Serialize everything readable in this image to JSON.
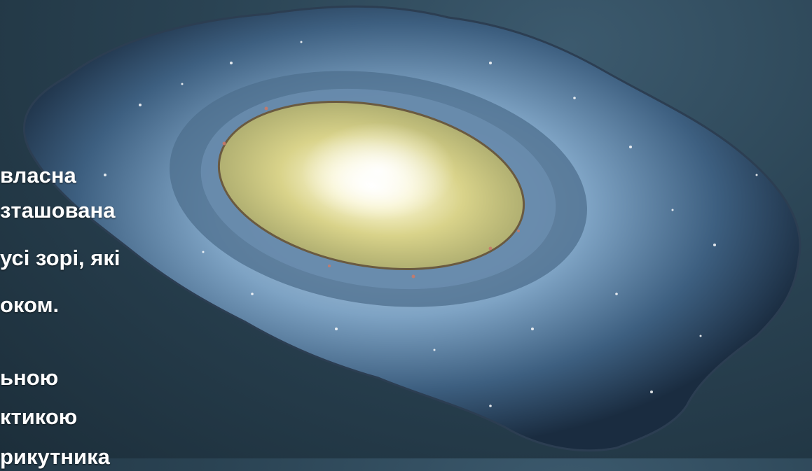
{
  "text_lines": [
    "власна",
    "зташована",
    "усі зорі, які",
    "оком.",
    "ьною",
    "ктикою",
    "рикутника"
  ],
  "colors": {
    "background": "#2a4353",
    "galaxy_core": "#f6f1c4",
    "galaxy_arms": "#8fb0cf",
    "text": "#ffffff"
  }
}
